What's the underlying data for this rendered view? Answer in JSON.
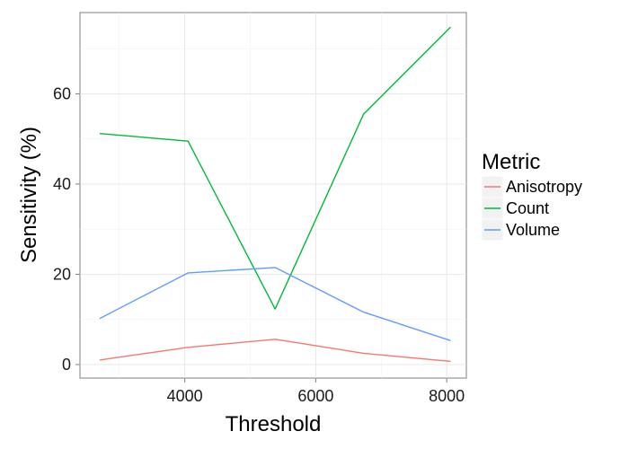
{
  "chart_data": {
    "type": "line",
    "xlabel": "Threshold",
    "ylabel": "Sensitivity (%)",
    "xlim": [
      2400,
      8300
    ],
    "ylim": [
      -3,
      78
    ],
    "x_ticks": [
      4000,
      6000,
      8000
    ],
    "y_ticks": [
      0,
      20,
      40,
      60
    ],
    "x": [
      2700,
      4050,
      5380,
      6730,
      8060
    ],
    "grid": true,
    "legend": {
      "title": "Metric",
      "position": "right"
    },
    "series": [
      {
        "name": "Anisotropy",
        "color": "#F8766D",
        "values": [
          1.0,
          3.8,
          5.6,
          2.5,
          0.7
        ]
      },
      {
        "name": "Count",
        "color": "#00BA38",
        "values": [
          51.2,
          49.5,
          12.3,
          55.5,
          74.8
        ]
      },
      {
        "name": "Volume",
        "color": "#619CFF",
        "values": [
          10.2,
          20.3,
          21.5,
          11.6,
          5.3
        ]
      }
    ]
  }
}
